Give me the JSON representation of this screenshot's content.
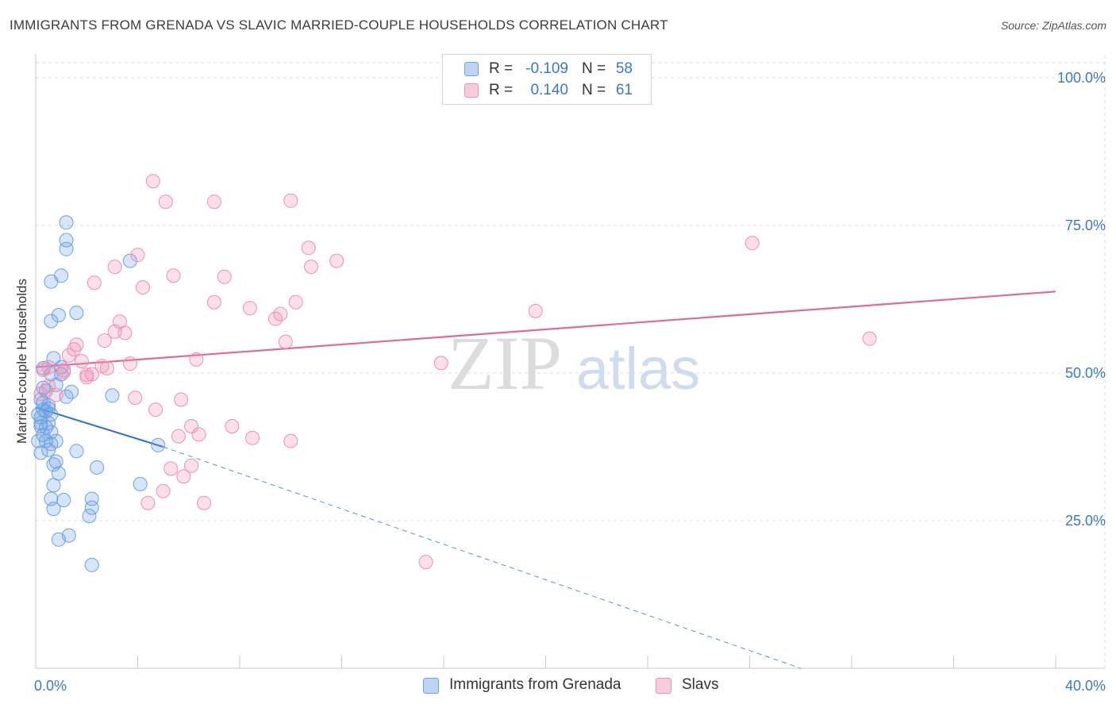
{
  "header": {
    "title": "IMMIGRANTS FROM GRENADA VS SLAVIC MARRIED-COUPLE HOUSEHOLDS CORRELATION CHART",
    "source": "Source: ZipAtlas.com"
  },
  "watermark": {
    "zip": "ZIP",
    "atlas": "atlas"
  },
  "legend": {
    "rows": [
      {
        "r_label": "R =",
        "r_value": "-0.109",
        "n_label": "N =",
        "n_value": "58",
        "color": "#6ea0e6"
      },
      {
        "r_label": "R =",
        "r_value": "0.140",
        "n_label": "N =",
        "n_value": "61",
        "color": "#f08fb0"
      }
    ]
  },
  "bottom_legend": {
    "items": [
      {
        "label": "Immigrants from Grenada",
        "color": "#6ea0e6"
      },
      {
        "label": "Slavs",
        "color": "#f08fb0"
      }
    ]
  },
  "chart_data": {
    "type": "scatter",
    "title": "IMMIGRANTS FROM GRENADA VS SLAVIC MARRIED-COUPLE HOUSEHOLDS CORRELATION CHART",
    "xlabel": "",
    "ylabel": "Married-couple Households",
    "xlim": [
      0,
      40
    ],
    "ylim": [
      0,
      102
    ],
    "x_tick_labels": [
      "0.0%",
      "40.0%"
    ],
    "y_ticks": [
      25,
      50,
      75,
      100
    ],
    "y_tick_labels": [
      "25.0%",
      "50.0%",
      "75.0%",
      "100.0%"
    ],
    "grid": true,
    "legend_position": "top-center",
    "series": [
      {
        "name": "Immigrants from Grenada",
        "color": "#6ea0e6",
        "points": [
          [
            1.2,
            75.5
          ],
          [
            1.2,
            72.5
          ],
          [
            1.2,
            71
          ],
          [
            1.0,
            66.5
          ],
          [
            0.6,
            65.5
          ],
          [
            3.7,
            69
          ],
          [
            1.6,
            60.2
          ],
          [
            0.9,
            59.8
          ],
          [
            0.6,
            58.8
          ],
          [
            0.7,
            52.5
          ],
          [
            1.0,
            51
          ],
          [
            0.3,
            50.8
          ],
          [
            0.6,
            49.8
          ],
          [
            1.0,
            49.8
          ],
          [
            0.8,
            48
          ],
          [
            0.4,
            47
          ],
          [
            1.4,
            46.8
          ],
          [
            1.2,
            46
          ],
          [
            3.0,
            46.2
          ],
          [
            0.3,
            45
          ],
          [
            0.5,
            44
          ],
          [
            0.4,
            43.5
          ],
          [
            0.6,
            43
          ],
          [
            0.2,
            42.5
          ],
          [
            0.2,
            41.5
          ],
          [
            0.5,
            41.5
          ],
          [
            0.3,
            39.5
          ],
          [
            0.4,
            38.5
          ],
          [
            0.6,
            38
          ],
          [
            0.8,
            38.5
          ],
          [
            0.5,
            37
          ],
          [
            0.2,
            36.5
          ],
          [
            1.6,
            36.8
          ],
          [
            4.8,
            37.8
          ],
          [
            0.8,
            35
          ],
          [
            0.7,
            34.5
          ],
          [
            2.4,
            34
          ],
          [
            0.9,
            33
          ],
          [
            0.7,
            31
          ],
          [
            4.1,
            31.2
          ],
          [
            0.6,
            28.7
          ],
          [
            1.1,
            28.5
          ],
          [
            2.2,
            28.7
          ],
          [
            0.7,
            27
          ],
          [
            2.2,
            27.2
          ],
          [
            2.1,
            25.8
          ],
          [
            1.3,
            22.5
          ],
          [
            0.9,
            21.8
          ],
          [
            2.2,
            17.5
          ],
          [
            0.1,
            43
          ],
          [
            0.2,
            41
          ],
          [
            0.3,
            43.8
          ],
          [
            0.4,
            40.8
          ],
          [
            0.1,
            38.5
          ],
          [
            0.5,
            44.5
          ],
          [
            0.2,
            45.5
          ],
          [
            0.3,
            47.5
          ],
          [
            0.6,
            40
          ]
        ],
        "trend": {
          "x0": 0.0,
          "y0": 44.2,
          "x1": 5.0,
          "y1": 37.5,
          "dashed_to_x": 30.0,
          "dashed_to_y": 0
        }
      },
      {
        "name": "Slavs",
        "color": "#f08fb0",
        "points": [
          [
            4.6,
            82.5
          ],
          [
            5.1,
            79
          ],
          [
            7.0,
            79
          ],
          [
            10.0,
            79.2
          ],
          [
            10.7,
            71.2
          ],
          [
            4.0,
            70
          ],
          [
            11.8,
            69
          ],
          [
            3.1,
            68
          ],
          [
            10.8,
            68
          ],
          [
            5.4,
            66.5
          ],
          [
            7.4,
            66.3
          ],
          [
            2.3,
            65.3
          ],
          [
            4.2,
            64.5
          ],
          [
            7.0,
            62
          ],
          [
            8.4,
            61
          ],
          [
            10.2,
            62
          ],
          [
            9.6,
            60
          ],
          [
            19.6,
            60.5
          ],
          [
            28.1,
            72
          ],
          [
            3.3,
            58.7
          ],
          [
            9.4,
            59.2
          ],
          [
            3.5,
            56.8
          ],
          [
            3.1,
            57
          ],
          [
            2.7,
            55.5
          ],
          [
            1.6,
            54.8
          ],
          [
            9.8,
            55.3
          ],
          [
            1.5,
            54
          ],
          [
            1.3,
            53
          ],
          [
            6.3,
            52.3
          ],
          [
            1.8,
            52
          ],
          [
            2.6,
            51.2
          ],
          [
            2.8,
            50.8
          ],
          [
            3.7,
            51.6
          ],
          [
            0.3,
            50.5
          ],
          [
            1.1,
            50.5
          ],
          [
            0.5,
            51
          ],
          [
            1.1,
            50.2
          ],
          [
            2.0,
            49.7
          ],
          [
            2.2,
            49.8
          ],
          [
            2.0,
            49.3
          ],
          [
            15.9,
            51.7
          ],
          [
            32.7,
            55.8
          ],
          [
            0.2,
            46.5
          ],
          [
            3.9,
            45.8
          ],
          [
            5.7,
            45.5
          ],
          [
            4.7,
            43.8
          ],
          [
            6.1,
            41
          ],
          [
            7.7,
            41
          ],
          [
            5.6,
            39.3
          ],
          [
            6.4,
            39.6
          ],
          [
            8.5,
            39
          ],
          [
            10.0,
            38.5
          ],
          [
            5.3,
            33.8
          ],
          [
            5.0,
            30
          ],
          [
            5.8,
            32.5
          ],
          [
            6.1,
            34.3
          ],
          [
            4.4,
            28
          ],
          [
            6.6,
            28
          ],
          [
            15.3,
            18
          ],
          [
            0.5,
            47.8
          ],
          [
            0.8,
            46.3
          ]
        ],
        "trend": {
          "x0": 0.0,
          "y0": 51.0,
          "x1": 40.0,
          "y1": 63.8
        }
      }
    ]
  }
}
